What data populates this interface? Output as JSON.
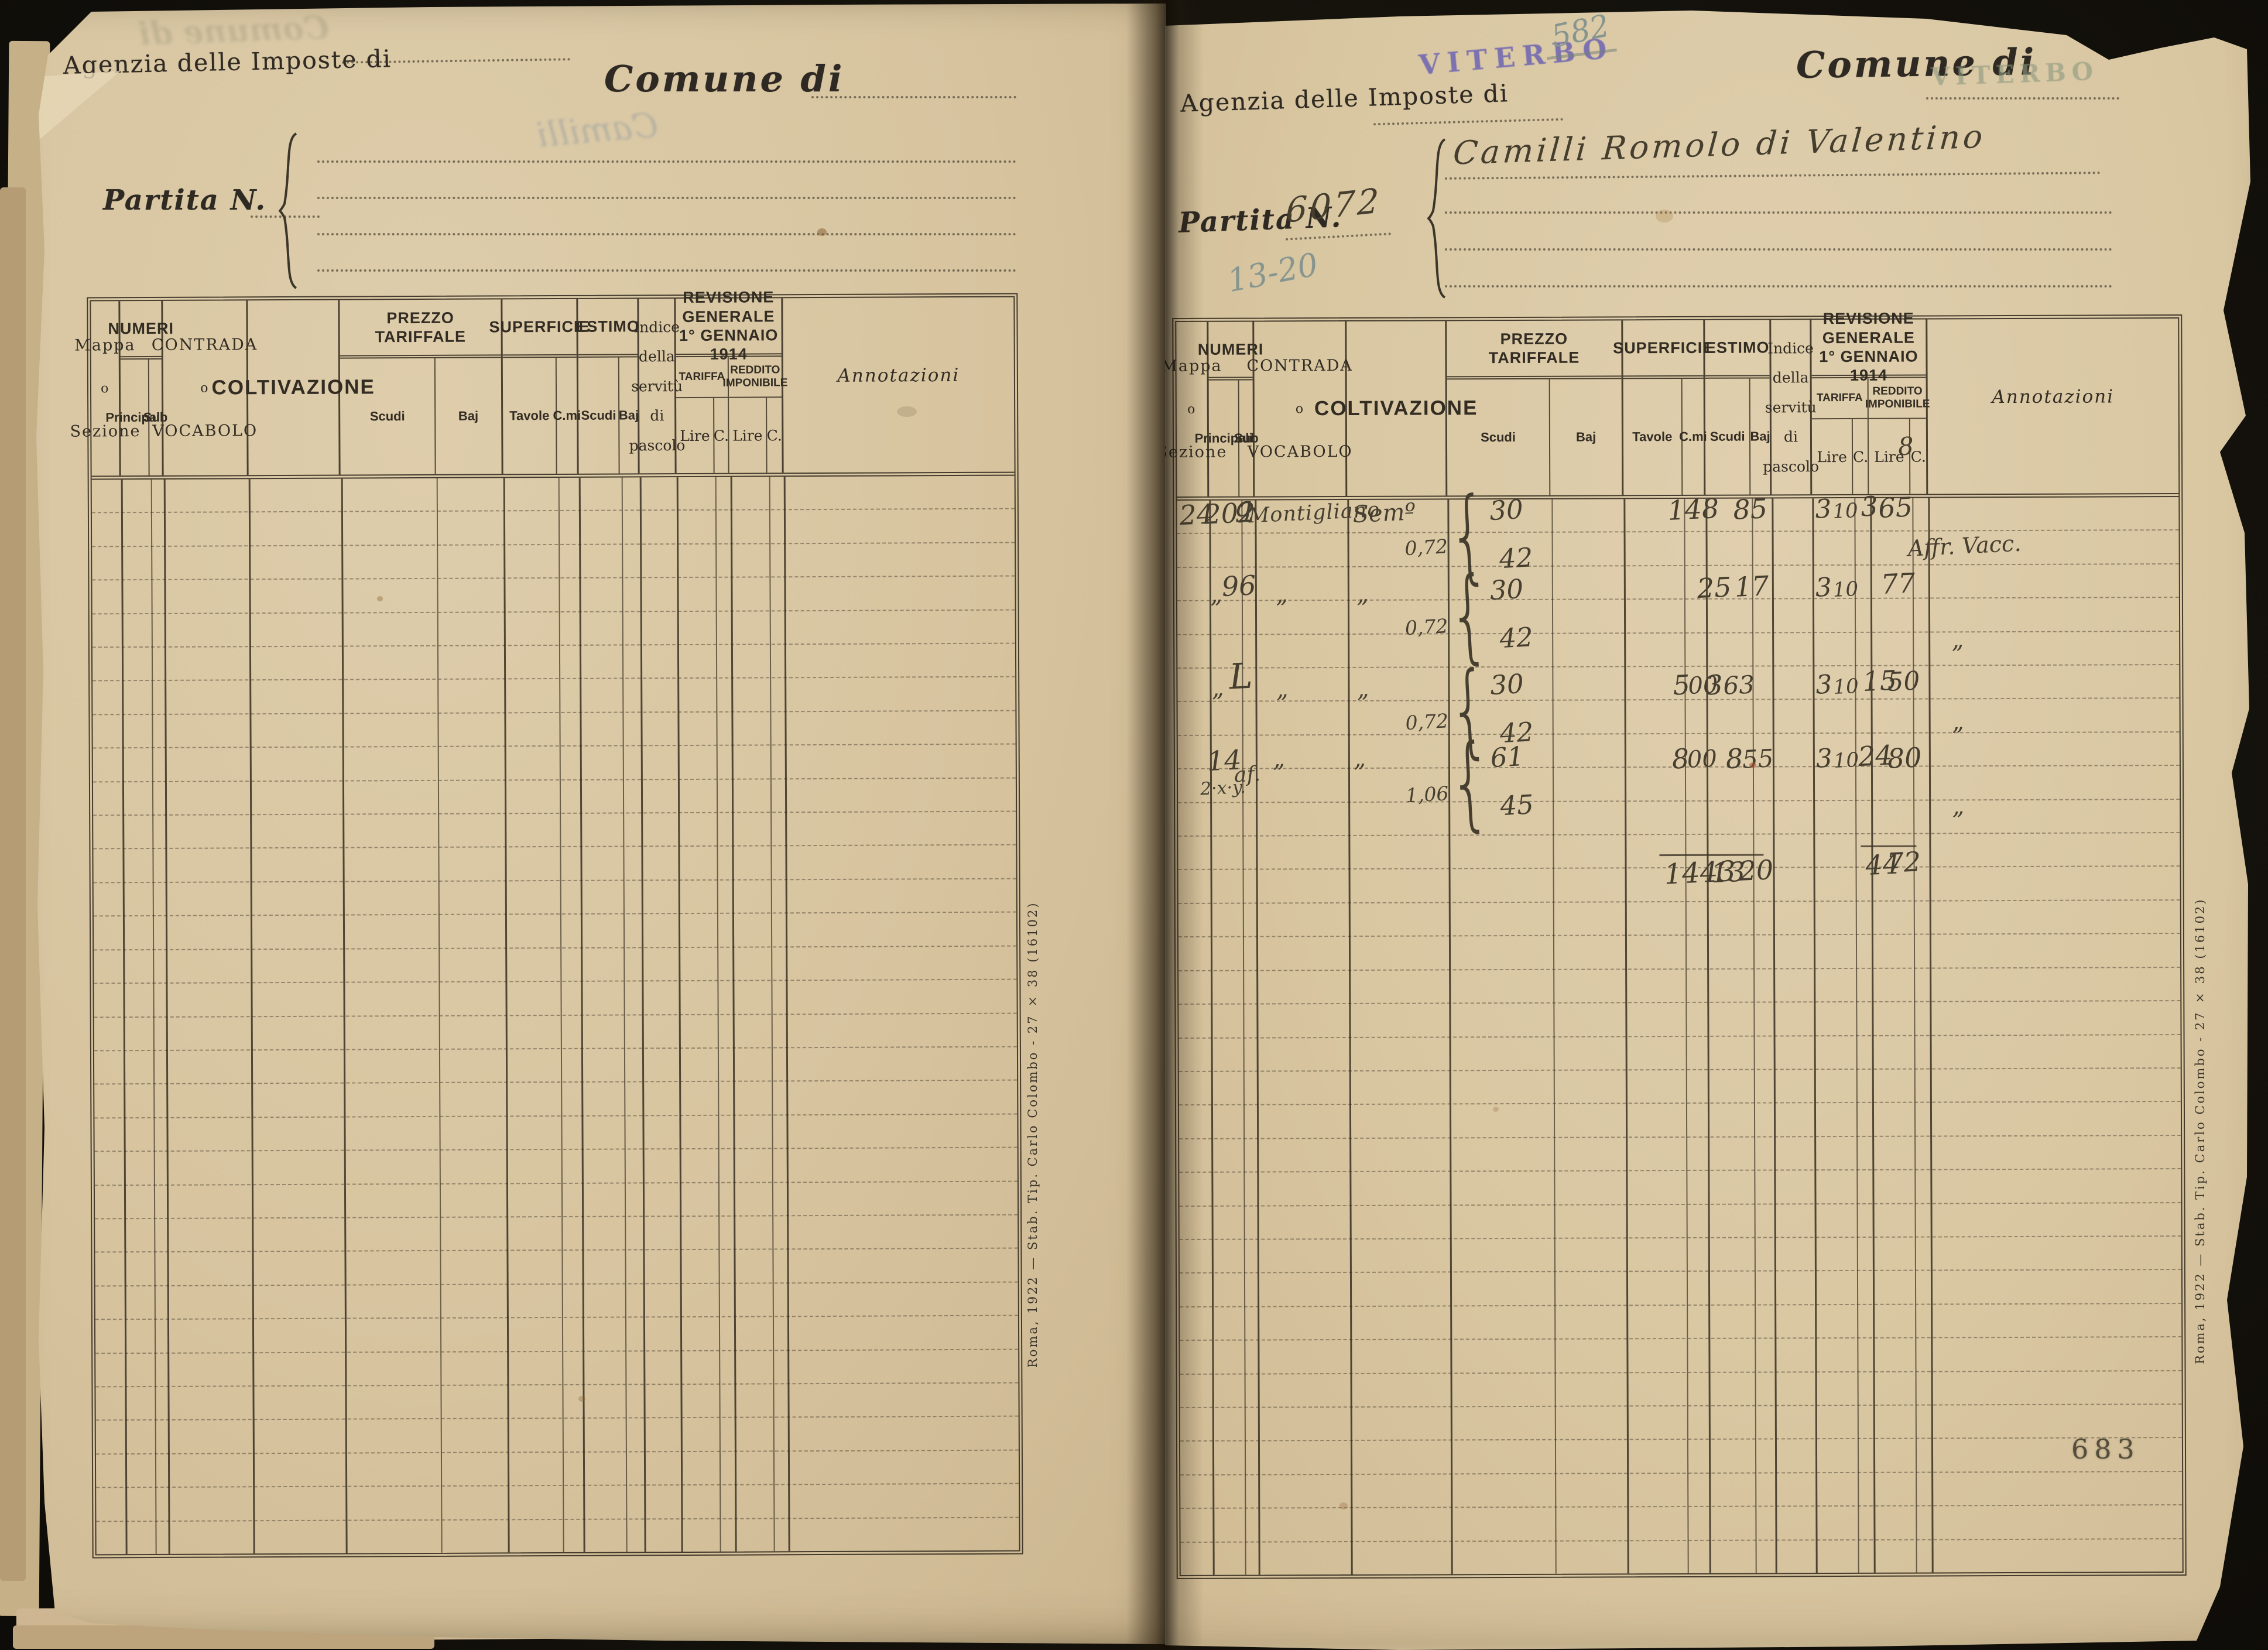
{
  "left_page": {
    "agency_label": "Agenzia delle Imposte di",
    "comune_label": "Comune di",
    "partita_label": "Partita N.",
    "ghost_name": "Camilli",
    "ghost_stamp": "Comune di",
    "imprint": "Roma, 1922 — Stab. Tip. Carlo Colombo - 27 × 38 (16102)"
  },
  "right_page": {
    "agency_label": "Agenzia delle Imposte di",
    "agency_stamp": "VITERBO",
    "pencil_number": "582",
    "comune_label": "Comune di",
    "comune_stamp": "VITERBO",
    "partita_label": "Partita N.",
    "partita_number": "6072",
    "pencil_fraction": "13-20",
    "holder_name": "Camilli Romolo di Valentino",
    "annotation_header_note": "8",
    "page_number": "683",
    "imprint": "Roma, 1922 — Stab. Tip. Carlo Colombo - 27 × 38 (16102)"
  },
  "table_header": {
    "mappa_1": "Mappa",
    "mappa_2": "o",
    "mappa_3": "Sezione",
    "numeri": "NUMERI",
    "principali": "Principali",
    "sub": "Sub",
    "contrada_1": "CONTRADA",
    "contrada_2": "o",
    "contrada_3": "VOCABOLO",
    "coltivazione": "COLTIVAZIONE",
    "prezzo_1": "PREZZO",
    "prezzo_2": "TARIFFALE",
    "scudi": "Scudi",
    "baj": "Baj",
    "superficie": "SUPERFICIE",
    "tavole": "Tavole",
    "cmi": "C.mi",
    "estimo": "ESTIMO",
    "indice_1": "Indice",
    "indice_2": "della",
    "indice_3": "servitù",
    "indice_4": "di",
    "indice_5": "pascolo",
    "revisione_1": "REVISIONE GENERALE",
    "revisione_2": "1° GENNAIO 1914",
    "tariffa": "TARIFFA",
    "reddito": "REDDITO IMPONIBILE",
    "lire": "Lire",
    "c": "C.",
    "annotazioni": "Annotazioni",
    "price_brace": "{"
  },
  "entries": [
    {
      "mappa": "24",
      "principali": "202",
      "sub": "g",
      "contrada": "Montigliano",
      "coltivazione": "Semº",
      "prezzo_rate": "0,72",
      "prezzo_scudi": "30",
      "prezzo_baj": "42",
      "tavole": "148",
      "cmi": "",
      "estimo_scudi": "85",
      "estimo_baj": "",
      "tariffa_lire": "3",
      "tariffa_c": "10",
      "reddito_lire": "3",
      "reddito_c": "65",
      "annotazione": "Affr. Vacc."
    },
    {
      "mappa": "„",
      "principali": "96",
      "sub": "",
      "contrada": "„",
      "coltivazione": "„",
      "prezzo_rate": "0,72",
      "prezzo_scudi": "30",
      "prezzo_baj": "42",
      "tavole": "25",
      "cmi": "",
      "estimo_scudi": "17",
      "estimo_baj": "",
      "tariffa_lire": "3",
      "tariffa_c": "10",
      "reddito_lire": "",
      "reddito_c": "77",
      "annotazione": "„"
    },
    {
      "mappa": "",
      "principali": "„",
      "sub": "L",
      "contrada": "„",
      "coltivazione": "„",
      "prezzo_rate": "0,72",
      "prezzo_scudi": "30",
      "prezzo_baj": "42",
      "tavole": "5",
      "cmi": "00",
      "estimo_scudi": "3",
      "estimo_baj": "63",
      "tariffa_lire": "3",
      "tariffa_c": "10",
      "reddito_lire": "15",
      "reddito_c": "50",
      "annotazione": "„"
    },
    {
      "mappa": "",
      "principali": "14",
      "principali_note": "2·x·y.",
      "sub": "af.",
      "contrada": "„",
      "coltivazione": "„",
      "prezzo_rate": "1,06",
      "prezzo_scudi": "61",
      "prezzo_baj": "45",
      "tavole": "8",
      "cmi": "00",
      "estimo_scudi": "8",
      "estimo_baj": "55",
      "tariffa_lire": "3",
      "tariffa_c": "10",
      "reddito_lire": "24",
      "reddito_c": "80",
      "annotazione": "„"
    }
  ],
  "totals": {
    "tavole": "1443",
    "estimo_scudi": "13",
    "estimo_baj": "20",
    "reddito_lire": "44",
    "reddito_c": "72"
  }
}
